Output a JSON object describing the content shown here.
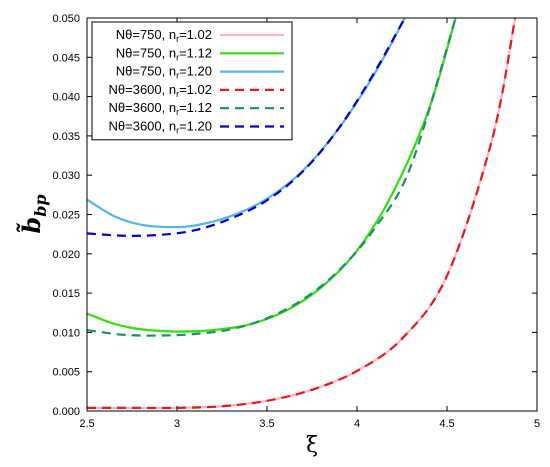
{
  "chart_data": {
    "type": "line",
    "xlabel": "ξ",
    "ylabel": {
      "main": "b̃",
      "sub": "bp"
    },
    "xlim": [
      2.5,
      5.0
    ],
    "ylim": [
      0.0,
      0.05
    ],
    "xticks": [
      "2.5",
      "3",
      "3.5",
      "4",
      "4.5",
      "5"
    ],
    "yticks": [
      "0.000",
      "0.005",
      "0.010",
      "0.015",
      "0.020",
      "0.025",
      "0.030",
      "0.035",
      "0.040",
      "0.045",
      "0.050"
    ],
    "grid": false,
    "legend_position": "top-left",
    "series": [
      {
        "name": "Nθ=750, nr=1.02",
        "label_main": "Nθ=750, n",
        "label_sub": "r",
        "label_tail": "=1.02",
        "color": "#ffb6c1",
        "style": "solid",
        "x": [
          2.5,
          2.75,
          3.0,
          3.25,
          3.5,
          3.75,
          4.0,
          4.25,
          4.5,
          4.75,
          4.88
        ],
        "y": [
          0.0004,
          0.0004,
          0.0004,
          0.0006,
          0.0013,
          0.0027,
          0.0051,
          0.0092,
          0.0172,
          0.0345,
          0.0502
        ]
      },
      {
        "name": "Nθ=750, nr=1.12",
        "label_main": "Nθ=750, n",
        "label_sub": "r",
        "label_tail": "=1.12",
        "color": "#33dd11",
        "style": "solid",
        "x": [
          2.5,
          2.65,
          2.8,
          3.0,
          3.2,
          3.4,
          3.6,
          3.8,
          4.0,
          4.2,
          4.4,
          4.55
        ],
        "y": [
          0.0124,
          0.0111,
          0.0104,
          0.0101,
          0.0103,
          0.011,
          0.0127,
          0.0157,
          0.0204,
          0.0278,
          0.0384,
          0.0502
        ]
      },
      {
        "name": "Nθ=750, nr=1.20",
        "label_main": "Nθ=750, n",
        "label_sub": "r",
        "label_tail": "=1.20",
        "color": "#56b4e9",
        "style": "solid",
        "x": [
          2.5,
          2.65,
          2.8,
          2.95,
          3.1,
          3.3,
          3.5,
          3.7,
          3.9,
          4.1,
          4.27
        ],
        "y": [
          0.0269,
          0.0248,
          0.0237,
          0.0234,
          0.0236,
          0.0248,
          0.027,
          0.0306,
          0.036,
          0.043,
          0.0502
        ]
      },
      {
        "name": "Nθ=3600, nr=1.02",
        "label_main": "Nθ=3600, n",
        "label_sub": "r",
        "label_tail": "=1.02",
        "color": "#e41a1c",
        "style": "dashed",
        "x": [
          2.5,
          2.75,
          3.0,
          3.25,
          3.5,
          3.75,
          4.0,
          4.25,
          4.5,
          4.75,
          4.88
        ],
        "y": [
          0.0004,
          0.0004,
          0.0004,
          0.0006,
          0.0013,
          0.0027,
          0.0051,
          0.0092,
          0.0172,
          0.0345,
          0.0502
        ]
      },
      {
        "name": "Nθ=3600, nr=1.12",
        "label_main": "Nθ=3600, n",
        "label_sub": "r",
        "label_tail": "=1.12",
        "color": "#1a9160",
        "style": "dashed",
        "x": [
          2.5,
          2.7,
          2.9,
          3.1,
          3.3,
          3.5,
          3.7,
          3.9,
          4.1,
          4.3,
          4.55
        ],
        "y": [
          0.0103,
          0.0097,
          0.0096,
          0.0098,
          0.0104,
          0.0118,
          0.0142,
          0.0179,
          0.0233,
          0.0312,
          0.0502
        ]
      },
      {
        "name": "Nθ=3600, nr=1.20",
        "label_main": "Nθ=3600, n",
        "label_sub": "r",
        "label_tail": "=1.20",
        "color": "#0000cc",
        "style": "dashed",
        "x": [
          2.5,
          2.7,
          2.9,
          3.1,
          3.3,
          3.5,
          3.7,
          3.9,
          4.1,
          4.27
        ],
        "y": [
          0.0226,
          0.0223,
          0.0224,
          0.023,
          0.0245,
          0.0268,
          0.0305,
          0.036,
          0.0432,
          0.0502
        ]
      }
    ]
  }
}
